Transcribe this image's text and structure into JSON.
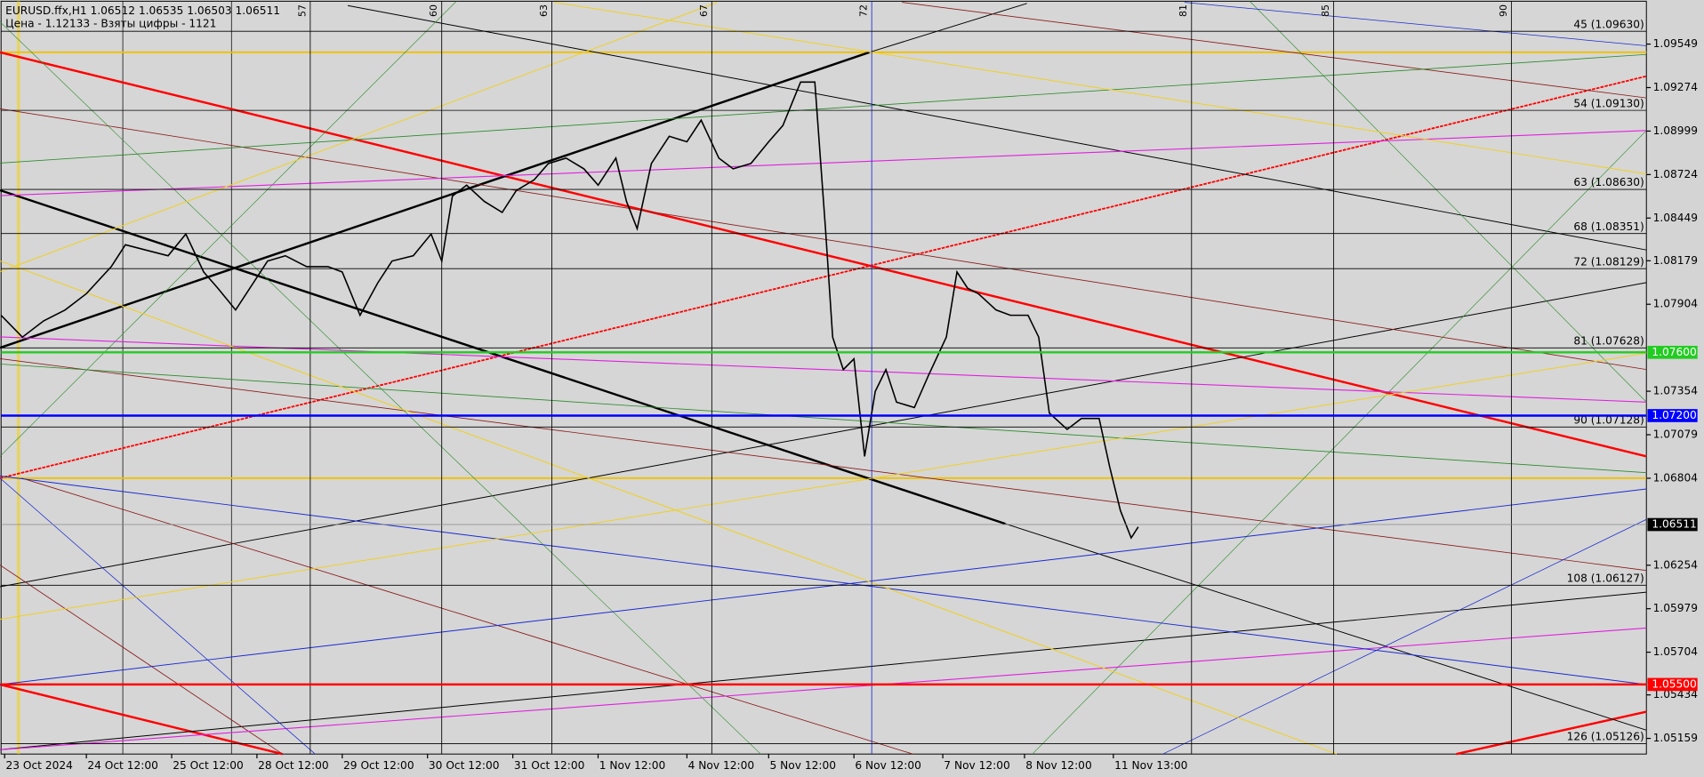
{
  "chart_data": {
    "type": "line",
    "header": [
      "EURUSD.ffx,H1  1.06512 1.06535 1.06503 1.06511",
      "Цена - 1.12133 - Взяты цифры - 1121"
    ],
    "color": "#000000",
    "x": [
      0,
      6,
      12,
      18,
      24,
      31,
      35,
      41,
      47,
      52,
      57,
      61,
      66,
      70,
      75,
      80,
      86,
      92,
      96,
      101,
      106,
      110,
      116,
      121,
      124,
      127,
      131,
      136,
      141,
      145,
      150,
      154,
      159,
      164,
      168,
      173,
      176,
      179,
      183,
      188,
      193,
      197,
      202,
      206,
      211,
      216,
      220,
      225,
      229,
      232,
      234,
      237,
      240,
      243,
      246,
      249,
      252,
      257,
      261,
      266,
      269,
      272,
      275,
      280,
      284,
      289,
      292,
      295,
      300,
      304,
      309,
      312,
      315,
      318,
      320
    ],
    "values": [
      1.07834,
      1.07696,
      1.07799,
      1.07868,
      1.07971,
      1.08142,
      1.0828,
      1.08245,
      1.08211,
      1.08348,
      1.08108,
      1.08005,
      1.07868,
      1.08005,
      1.08177,
      1.08211,
      1.08142,
      1.08142,
      1.08108,
      1.07834,
      1.08039,
      1.08177,
      1.08211,
      1.08348,
      1.08177,
      1.08588,
      1.08657,
      1.08554,
      1.08485,
      1.08623,
      1.08691,
      1.08794,
      1.08828,
      1.0876,
      1.08657,
      1.08828,
      1.08554,
      1.08382,
      1.08794,
      1.08966,
      1.08931,
      1.09068,
      1.08828,
      1.0876,
      1.08794,
      1.08931,
      1.09034,
      1.09309,
      1.09309,
      1.08382,
      1.07696,
      1.07491,
      1.07559,
      1.06942,
      1.07353,
      1.07491,
      1.07285,
      1.07251,
      1.07456,
      1.07696,
      1.08108,
      1.08005,
      1.07971,
      1.07868,
      1.07834,
      1.07834,
      1.07696,
      1.07216,
      1.07113,
      1.07182,
      1.07182,
      1.06873,
      1.06599,
      1.06427,
      1.06496
    ],
    "xlim": [
      0,
      463
    ],
    "xticks": [
      {
        "value": 1,
        "label": "23 Oct 2024"
      },
      {
        "value": 24,
        "label": "24 Oct 12:00"
      },
      {
        "value": 48,
        "label": "25 Oct 12:00"
      },
      {
        "value": 72,
        "label": "28 Oct 12:00"
      },
      {
        "value": 96,
        "label": "29 Oct 12:00"
      },
      {
        "value": 120,
        "label": "30 Oct 12:00"
      },
      {
        "value": 144,
        "label": "31 Oct 12:00"
      },
      {
        "value": 168,
        "label": "1 Nov 12:00"
      },
      {
        "value": 193,
        "label": "4 Nov 12:00"
      },
      {
        "value": 216,
        "label": "5 Nov 12:00"
      },
      {
        "value": 240,
        "label": "6 Nov 12:00"
      },
      {
        "value": 265,
        "label": "7 Nov 12:00"
      },
      {
        "value": 288,
        "label": "8 Nov 12:00"
      },
      {
        "value": 313,
        "label": "11 Nov 13:00"
      }
    ],
    "ylim": [
      1.0506,
      1.0982
    ],
    "yticks": [
      1.09549,
      1.09274,
      1.08999,
      1.08724,
      1.08449,
      1.08179,
      1.07904,
      1.07354,
      1.07079,
      1.06804,
      1.06254,
      1.05979,
      1.05704,
      1.05434,
      1.05159
    ],
    "levels": [
      {
        "label": "45 (1.09630)",
        "value": 1.0963
      },
      {
        "label": "54 (1.09130)",
        "value": 1.0913
      },
      {
        "label": "63 (1.08630)",
        "value": 1.0863
      },
      {
        "label": "68 (1.08351)",
        "value": 1.08351
      },
      {
        "label": "72 (1.08129)",
        "value": 1.08129
      },
      {
        "label": "81 (1.07628)",
        "value": 1.07628
      },
      {
        "label": "90 (1.07128)",
        "value": 1.07128
      },
      {
        "label": "108 (1.06127)",
        "value": 1.06127
      },
      {
        "label": "126 (1.05126)",
        "value": 1.05126
      }
    ],
    "price_lines": [
      {
        "value": 1.076,
        "label": "1.07600",
        "color": "#22cc22"
      },
      {
        "value": 1.072,
        "label": "1.07200",
        "color": "#0000ff"
      },
      {
        "value": 1.06511,
        "label": "1.06511",
        "color": "#000000"
      },
      {
        "value": 1.055,
        "label": "1.05500",
        "color": "#ff0000"
      }
    ],
    "time_lines": [
      {
        "label": "57",
        "x": 87
      },
      {
        "label": "60",
        "x": 124
      },
      {
        "label": "63",
        "x": 155
      },
      {
        "label": "67",
        "x": 200
      },
      {
        "label": "72",
        "x": 245
      },
      {
        "label": "81",
        "x": 335
      },
      {
        "label": "85",
        "x": 375
      },
      {
        "label": "90",
        "x": 425
      }
    ]
  }
}
